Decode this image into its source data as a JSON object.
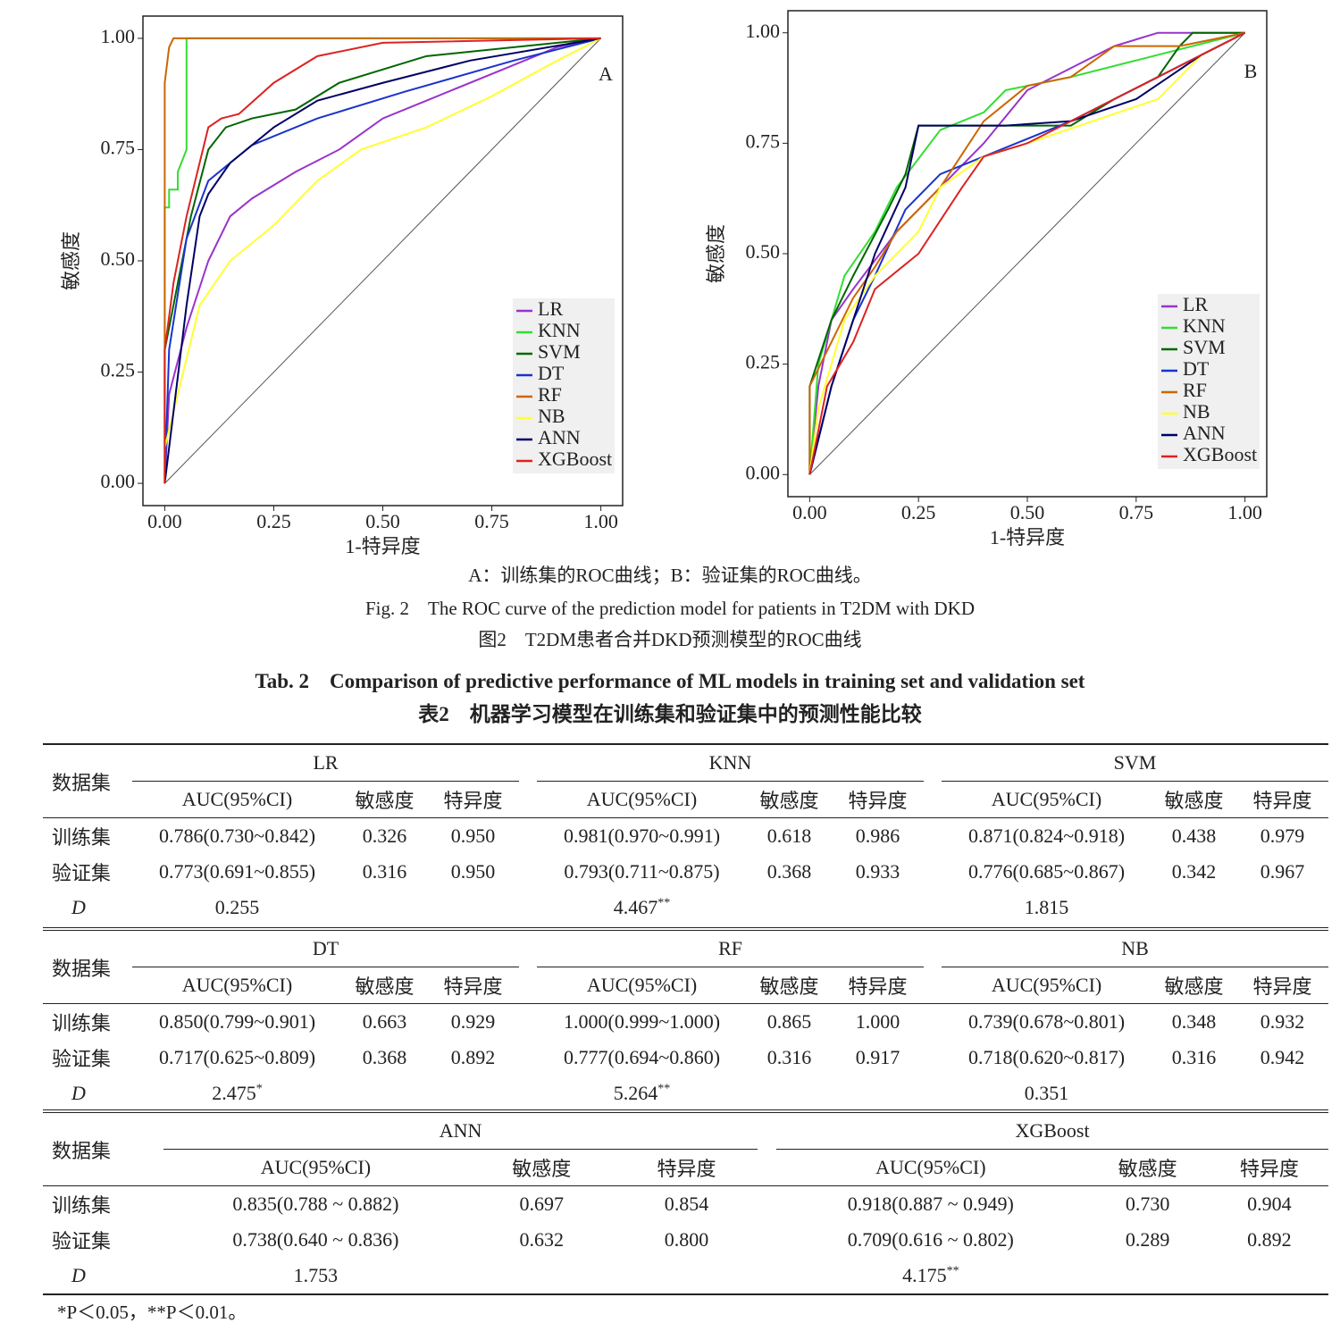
{
  "chart_data": [
    {
      "type": "line",
      "panel": "A",
      "x_label": "1-特异度",
      "y_label": "敏感度",
      "xlim": [
        -0.05,
        1.05
      ],
      "ylim": [
        -0.05,
        1.05
      ],
      "xticks": [
        {
          "value": 0,
          "label": "0.00"
        },
        {
          "value": 0.25,
          "label": "0.25"
        },
        {
          "value": 0.5,
          "label": "0.50"
        },
        {
          "value": 0.75,
          "label": "0.75"
        },
        {
          "value": 1,
          "label": "1.00"
        }
      ],
      "yticks": [
        {
          "value": 0,
          "label": "0.00"
        },
        {
          "value": 0.25,
          "label": "0.25"
        },
        {
          "value": 0.5,
          "label": "0.50"
        },
        {
          "value": 0.75,
          "label": "0.75"
        },
        {
          "value": 1,
          "label": "1.00"
        }
      ],
      "series": [
        {
          "name": "LR",
          "color": "#9933cc",
          "x": [
            0,
            0.01,
            0.05,
            0.1,
            0.15,
            0.2,
            0.3,
            0.4,
            0.5,
            0.6,
            0.8,
            0.9,
            1
          ],
          "values": [
            0,
            0.2,
            0.35,
            0.5,
            0.6,
            0.64,
            0.7,
            0.75,
            0.82,
            0.86,
            0.94,
            0.98,
            1
          ]
        },
        {
          "name": "KNN",
          "color": "#33dd33",
          "x": [
            0,
            0,
            0.01,
            0.01,
            0.03,
            0.03,
            0.05,
            0.05,
            1
          ],
          "values": [
            0,
            0.62,
            0.62,
            0.66,
            0.66,
            0.7,
            0.75,
            1,
            1
          ]
        },
        {
          "name": "SVM",
          "color": "#006600",
          "x": [
            0,
            0,
            0.03,
            0.06,
            0.1,
            0.14,
            0.2,
            0.3,
            0.4,
            0.6,
            1
          ],
          "values": [
            0,
            0.3,
            0.45,
            0.6,
            0.75,
            0.8,
            0.82,
            0.84,
            0.9,
            0.96,
            1
          ]
        },
        {
          "name": "DT",
          "color": "#1a33cc",
          "x": [
            0,
            0.01,
            0.05,
            0.1,
            0.2,
            0.35,
            0.55,
            0.8,
            1
          ],
          "values": [
            0,
            0.3,
            0.55,
            0.68,
            0.76,
            0.82,
            0.88,
            0.95,
            1
          ]
        },
        {
          "name": "RF",
          "color": "#cc6600",
          "x": [
            0,
            0,
            0.01,
            0.02,
            1
          ],
          "values": [
            0,
            0.9,
            0.98,
            1,
            1
          ]
        },
        {
          "name": "NB",
          "color": "#ffff33",
          "x": [
            0,
            0,
            0.03,
            0.08,
            0.15,
            0.25,
            0.35,
            0.45,
            0.6,
            0.75,
            0.9,
            1
          ],
          "values": [
            0,
            0.08,
            0.2,
            0.4,
            0.5,
            0.58,
            0.68,
            0.75,
            0.8,
            0.87,
            0.95,
            1
          ]
        },
        {
          "name": "ANN",
          "color": "#000066",
          "x": [
            0,
            0.05,
            0.08,
            0.1,
            0.15,
            0.25,
            0.35,
            0.5,
            0.7,
            1
          ],
          "values": [
            0,
            0.4,
            0.6,
            0.65,
            0.72,
            0.8,
            0.86,
            0.9,
            0.95,
            1
          ]
        },
        {
          "name": "XGBoost",
          "color": "#dd2222",
          "x": [
            0,
            0,
            0.02,
            0.05,
            0.08,
            0.1,
            0.13,
            0.17,
            0.25,
            0.35,
            0.5,
            1
          ],
          "values": [
            0,
            0.3,
            0.45,
            0.6,
            0.72,
            0.8,
            0.82,
            0.83,
            0.9,
            0.96,
            0.99,
            1
          ]
        }
      ]
    },
    {
      "type": "line",
      "panel": "B",
      "x_label": "1-特异度",
      "y_label": "敏感度",
      "xlim": [
        -0.05,
        1.05
      ],
      "ylim": [
        -0.05,
        1.05
      ],
      "xticks": [
        {
          "value": 0,
          "label": "0.00"
        },
        {
          "value": 0.25,
          "label": "0.25"
        },
        {
          "value": 0.5,
          "label": "0.50"
        },
        {
          "value": 0.75,
          "label": "0.75"
        },
        {
          "value": 1,
          "label": "1.00"
        }
      ],
      "yticks": [
        {
          "value": 0,
          "label": "0.00"
        },
        {
          "value": 0.25,
          "label": "0.25"
        },
        {
          "value": 0.5,
          "label": "0.50"
        },
        {
          "value": 0.75,
          "label": "0.75"
        },
        {
          "value": 1,
          "label": "1.00"
        }
      ],
      "series": [
        {
          "name": "LR",
          "color": "#9933cc",
          "x": [
            0,
            0.02,
            0.05,
            0.1,
            0.2,
            0.3,
            0.4,
            0.5,
            0.6,
            0.7,
            0.8,
            1
          ],
          "values": [
            0,
            0.2,
            0.35,
            0.42,
            0.55,
            0.65,
            0.75,
            0.87,
            0.92,
            0.97,
            1,
            1
          ]
        },
        {
          "name": "KNN",
          "color": "#33dd33",
          "x": [
            0,
            0.02,
            0.08,
            0.15,
            0.2,
            0.3,
            0.4,
            0.45,
            0.6,
            0.8,
            1
          ],
          "values": [
            0,
            0.25,
            0.45,
            0.55,
            0.65,
            0.78,
            0.82,
            0.87,
            0.9,
            0.95,
            1
          ]
        },
        {
          "name": "SVM",
          "color": "#006600",
          "x": [
            0,
            0,
            0.05,
            0.1,
            0.18,
            0.22,
            0.25,
            0.4,
            0.5,
            0.6,
            0.7,
            0.8,
            0.85,
            0.88,
            1
          ],
          "values": [
            0,
            0.2,
            0.35,
            0.45,
            0.6,
            0.68,
            0.79,
            0.79,
            0.79,
            0.79,
            0.85,
            0.9,
            0.97,
            1,
            1
          ]
        },
        {
          "name": "DT",
          "color": "#1a33cc",
          "x": [
            0,
            0.05,
            0.1,
            0.15,
            0.22,
            0.3,
            0.4,
            0.6,
            0.8,
            1
          ],
          "values": [
            0,
            0.2,
            0.35,
            0.45,
            0.6,
            0.68,
            0.72,
            0.8,
            0.9,
            1
          ]
        },
        {
          "name": "RF",
          "color": "#cc6600",
          "x": [
            0,
            0,
            0.05,
            0.1,
            0.15,
            0.2,
            0.25,
            0.3,
            0.4,
            0.5,
            0.6,
            0.7,
            0.85,
            1
          ],
          "values": [
            0,
            0.2,
            0.3,
            0.4,
            0.47,
            0.55,
            0.6,
            0.65,
            0.8,
            0.88,
            0.9,
            0.97,
            0.97,
            1
          ]
        },
        {
          "name": "NB",
          "color": "#ffff33",
          "x": [
            0,
            0.02,
            0.08,
            0.15,
            0.25,
            0.3,
            0.4,
            0.5,
            0.65,
            0.8,
            0.9,
            1
          ],
          "values": [
            0,
            0.15,
            0.35,
            0.45,
            0.55,
            0.65,
            0.72,
            0.75,
            0.8,
            0.85,
            0.95,
            1
          ]
        },
        {
          "name": "ANN",
          "color": "#000066",
          "x": [
            0,
            0.05,
            0.1,
            0.15,
            0.22,
            0.25,
            0.45,
            0.6,
            0.75,
            0.9,
            1
          ],
          "values": [
            0,
            0.2,
            0.35,
            0.5,
            0.65,
            0.79,
            0.79,
            0.8,
            0.85,
            0.95,
            1
          ]
        },
        {
          "name": "XGBoost",
          "color": "#dd2222",
          "x": [
            0,
            0.04,
            0.1,
            0.15,
            0.25,
            0.35,
            0.4,
            0.5,
            0.7,
            0.9,
            1
          ],
          "values": [
            0,
            0.2,
            0.3,
            0.42,
            0.5,
            0.65,
            0.72,
            0.75,
            0.85,
            0.95,
            1
          ]
        }
      ]
    }
  ],
  "captions": {
    "panels": "A：训练集的ROC曲线；B：验证集的ROC曲线。",
    "fig_en": "Fig. 2　The ROC curve of the prediction model for patients in T2DM with DKD",
    "fig_zh": "图2　T2DM患者合并DKD预测模型的ROC曲线"
  },
  "table": {
    "title_en": "Tab. 2　Comparison of predictive performance of ML models in training set and validation set",
    "title_zh": "表2　机器学习模型在训练集和验证集中的预测性能比较",
    "blocks": [
      {
        "corner": "数据集",
        "models": [
          "LR",
          "KNN",
          "SVM"
        ],
        "subheaders": [
          [
            "AUC(95%CI)",
            "敏感度",
            "特异度"
          ],
          [
            "AUC(95%CI)",
            "敏感度",
            "特异度"
          ],
          [
            "AUC(95%CI)",
            "敏感度",
            "特异度"
          ]
        ],
        "rows": [
          [
            "训练集",
            "0.786(0.730~0.842)",
            "0.326",
            "0.950",
            "0.981(0.970~0.991)",
            "0.618",
            "0.986",
            "0.871(0.824~0.918)",
            "0.438",
            "0.979"
          ],
          [
            "验证集",
            "0.773(0.691~0.855)",
            "0.316",
            "0.950",
            "0.793(0.711~0.875)",
            "0.368",
            "0.933",
            "0.776(0.685~0.867)",
            "0.342",
            "0.967"
          ]
        ],
        "d_label": "D",
        "d": [
          {
            "value": "0.255"
          },
          {
            "value": "4.467",
            "sig": "**"
          },
          {
            "value": "1.815"
          }
        ]
      },
      {
        "corner": "数据集",
        "models": [
          "DT",
          "RF",
          "NB"
        ],
        "subheaders": [
          [
            "AUC(95%CI)",
            "敏感度",
            "特异度"
          ],
          [
            "AUC(95%CI)",
            "敏感度",
            "特异度"
          ],
          [
            "AUC(95%CI)",
            "敏感度",
            "特异度"
          ]
        ],
        "rows": [
          [
            "训练集",
            "0.850(0.799~0.901)",
            "0.663",
            "0.929",
            "1.000(0.999~1.000)",
            "0.865",
            "1.000",
            "0.739(0.678~0.801)",
            "0.348",
            "0.932"
          ],
          [
            "验证集",
            "0.717(0.625~0.809)",
            "0.368",
            "0.892",
            "0.777(0.694~0.860)",
            "0.316",
            "0.917",
            "0.718(0.620~0.817)",
            "0.316",
            "0.942"
          ]
        ],
        "d_label": "D",
        "d": [
          {
            "value": "2.475",
            "sig": "*"
          },
          {
            "value": "5.264",
            "sig": "**"
          },
          {
            "value": "0.351"
          }
        ]
      },
      {
        "corner": "数据集",
        "models": [
          "ANN",
          "XGBoost"
        ],
        "subheaders": [
          [
            "AUC(95%CI)",
            "敏感度",
            "特异度"
          ],
          [
            "AUC(95%CI)",
            "敏感度",
            "特异度"
          ]
        ],
        "rows": [
          [
            "训练集",
            "0.835(0.788 ~ 0.882)",
            "0.697",
            "0.854",
            "0.918(0.887 ~ 0.949)",
            "0.730",
            "0.904"
          ],
          [
            "验证集",
            "0.738(0.640 ~ 0.836)",
            "0.632",
            "0.800",
            "0.709(0.616 ~ 0.802)",
            "0.289",
            "0.892"
          ]
        ],
        "d_label": "D",
        "d": [
          {
            "value": "1.753"
          },
          {
            "value": "4.175",
            "sig": "**"
          }
        ]
      }
    ],
    "footnote": "*P＜0.05，**P＜0.01。"
  }
}
